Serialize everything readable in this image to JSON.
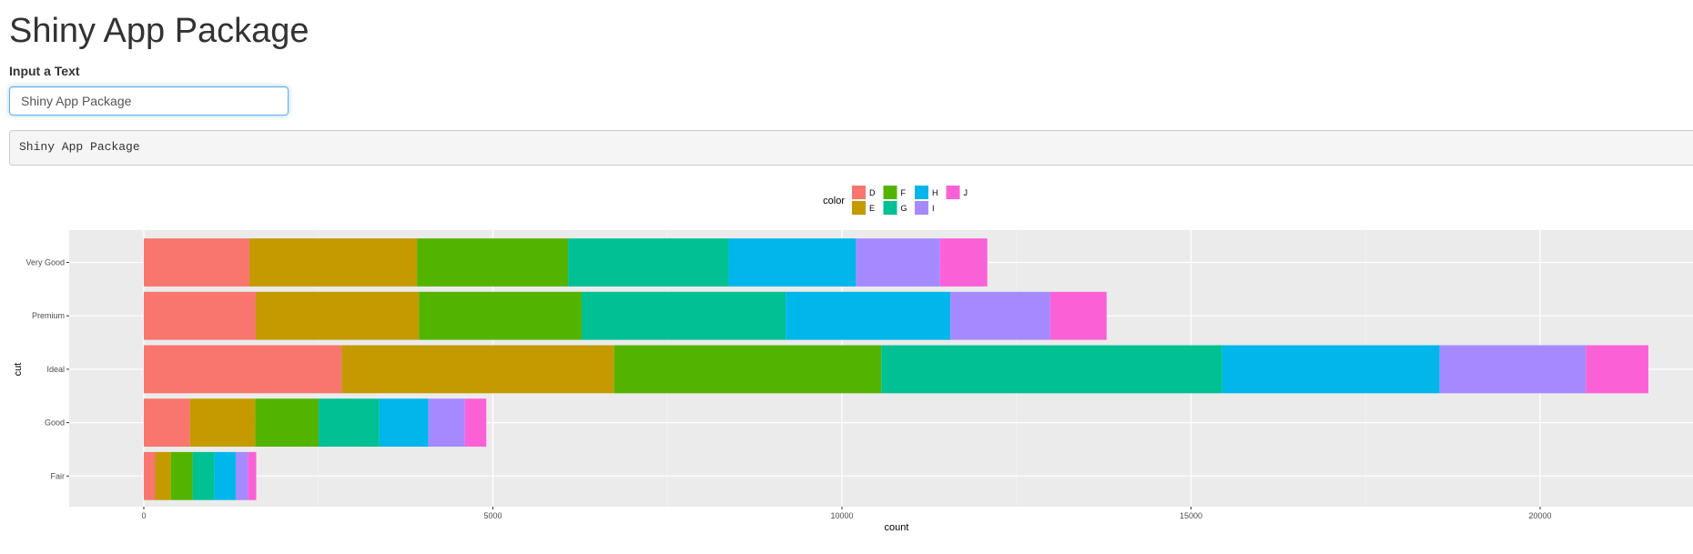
{
  "app": {
    "title": "Shiny App Package"
  },
  "text_input": {
    "label": "Input a Text",
    "value": "Shiny App Package"
  },
  "text_output": {
    "value": "Shiny App Package"
  },
  "chart_data": {
    "type": "bar",
    "orientation": "horizontal",
    "stacked": true,
    "xlabel": "count",
    "ylabel": "cut",
    "xlim": [
      0,
      22000
    ],
    "x_ticks": [
      0,
      5000,
      10000,
      15000,
      20000
    ],
    "grid": true,
    "legend": {
      "title": "color",
      "placement": "top",
      "entries": [
        "D",
        "E",
        "F",
        "G",
        "H",
        "I",
        "J"
      ]
    },
    "categories": [
      "Very Good",
      "Premium",
      "Ideal",
      "Good",
      "Fair"
    ],
    "series": [
      {
        "name": "D",
        "color": "#F8766D",
        "values": [
          1513,
          1603,
          2834,
          662,
          163
        ]
      },
      {
        "name": "E",
        "color": "#C49A00",
        "values": [
          2400,
          2337,
          3903,
          933,
          224
        ]
      },
      {
        "name": "F",
        "color": "#53B400",
        "values": [
          2164,
          2331,
          3826,
          909,
          312
        ]
      },
      {
        "name": "G",
        "color": "#00C094",
        "values": [
          2299,
          2924,
          4884,
          871,
          314
        ]
      },
      {
        "name": "H",
        "color": "#00B6EB",
        "values": [
          1824,
          2360,
          3115,
          702,
          303
        ]
      },
      {
        "name": "I",
        "color": "#A58AFF",
        "values": [
          1204,
          1428,
          2093,
          522,
          175
        ]
      },
      {
        "name": "J",
        "color": "#FB61D7",
        "values": [
          678,
          808,
          896,
          307,
          119
        ]
      }
    ]
  }
}
